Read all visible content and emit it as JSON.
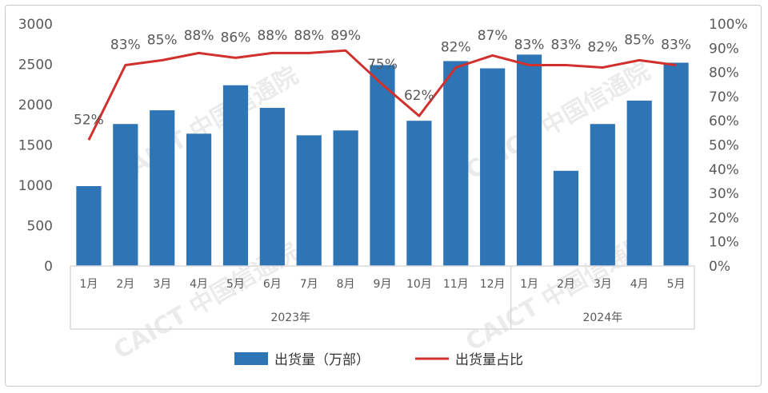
{
  "chart_data": {
    "type": "bar",
    "categories": [
      "1月",
      "2月",
      "3月",
      "4月",
      "5月",
      "6月",
      "7月",
      "8月",
      "9月",
      "10月",
      "11月",
      "12月",
      "1月",
      "2月",
      "3月",
      "4月",
      "5月"
    ],
    "years": [
      {
        "label": "2023年",
        "start": 0,
        "end": 11
      },
      {
        "label": "2024年",
        "start": 12,
        "end": 16
      }
    ],
    "series": [
      {
        "name": "出货量（万部）",
        "type": "bar",
        "axis": "left",
        "color": "#2e75b6",
        "values": [
          990,
          1760,
          1930,
          1640,
          2240,
          1960,
          1620,
          1680,
          2490,
          1800,
          2540,
          2450,
          2620,
          1180,
          1760,
          2050,
          2520
        ]
      },
      {
        "name": "出货量占比",
        "type": "line",
        "axis": "right",
        "color": "#d0312d",
        "values": [
          52,
          83,
          85,
          88,
          86,
          88,
          88,
          89,
          75,
          62,
          82,
          87,
          83,
          83,
          82,
          85,
          83
        ],
        "labels": [
          "52%",
          "83%",
          "85%",
          "88%",
          "86%",
          "88%",
          "88%",
          "89%",
          "75%",
          "62%",
          "82%",
          "87%",
          "83%",
          "83%",
          "82%",
          "85%",
          "83%"
        ]
      }
    ],
    "y_left": {
      "min": 0,
      "max": 3000,
      "ticks": [
        "0",
        "500",
        "1000",
        "1500",
        "2000",
        "2500",
        "3000"
      ]
    },
    "y_right": {
      "min": 0,
      "max": 100,
      "ticks": [
        "0%",
        "10%",
        "20%",
        "30%",
        "40%",
        "50%",
        "60%",
        "70%",
        "80%",
        "90%",
        "100%"
      ]
    },
    "grid": false,
    "legend_position": "bottom",
    "watermark": "CAICT 中国信通院"
  }
}
